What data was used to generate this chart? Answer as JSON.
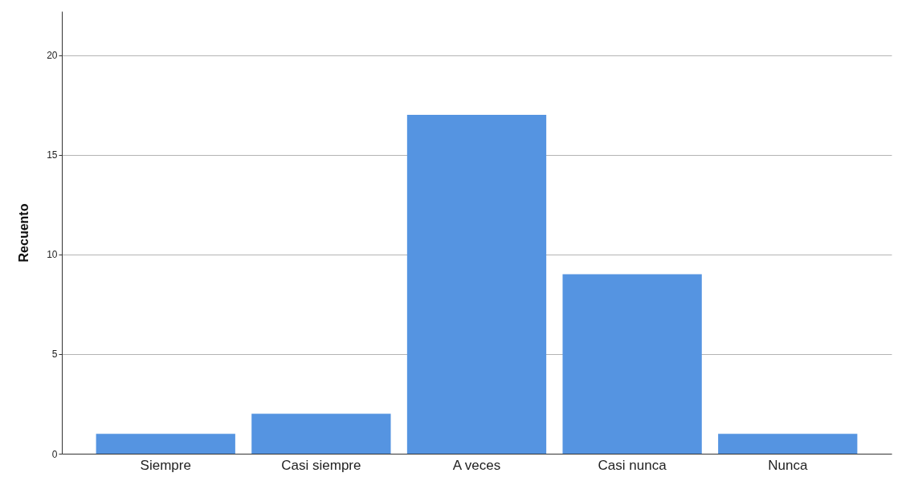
{
  "chart_data": {
    "type": "bar",
    "ylabel": "Recuento",
    "categories": [
      "Siempre",
      "Casi siempre",
      "A veces",
      "Casi nunca",
      "Nunca"
    ],
    "values": [
      1,
      2,
      17,
      9,
      1
    ],
    "color": "#5594e1",
    "ylim": [
      0,
      22.2
    ],
    "yticks": [
      0,
      5,
      10,
      15,
      20
    ],
    "grid": "y"
  }
}
